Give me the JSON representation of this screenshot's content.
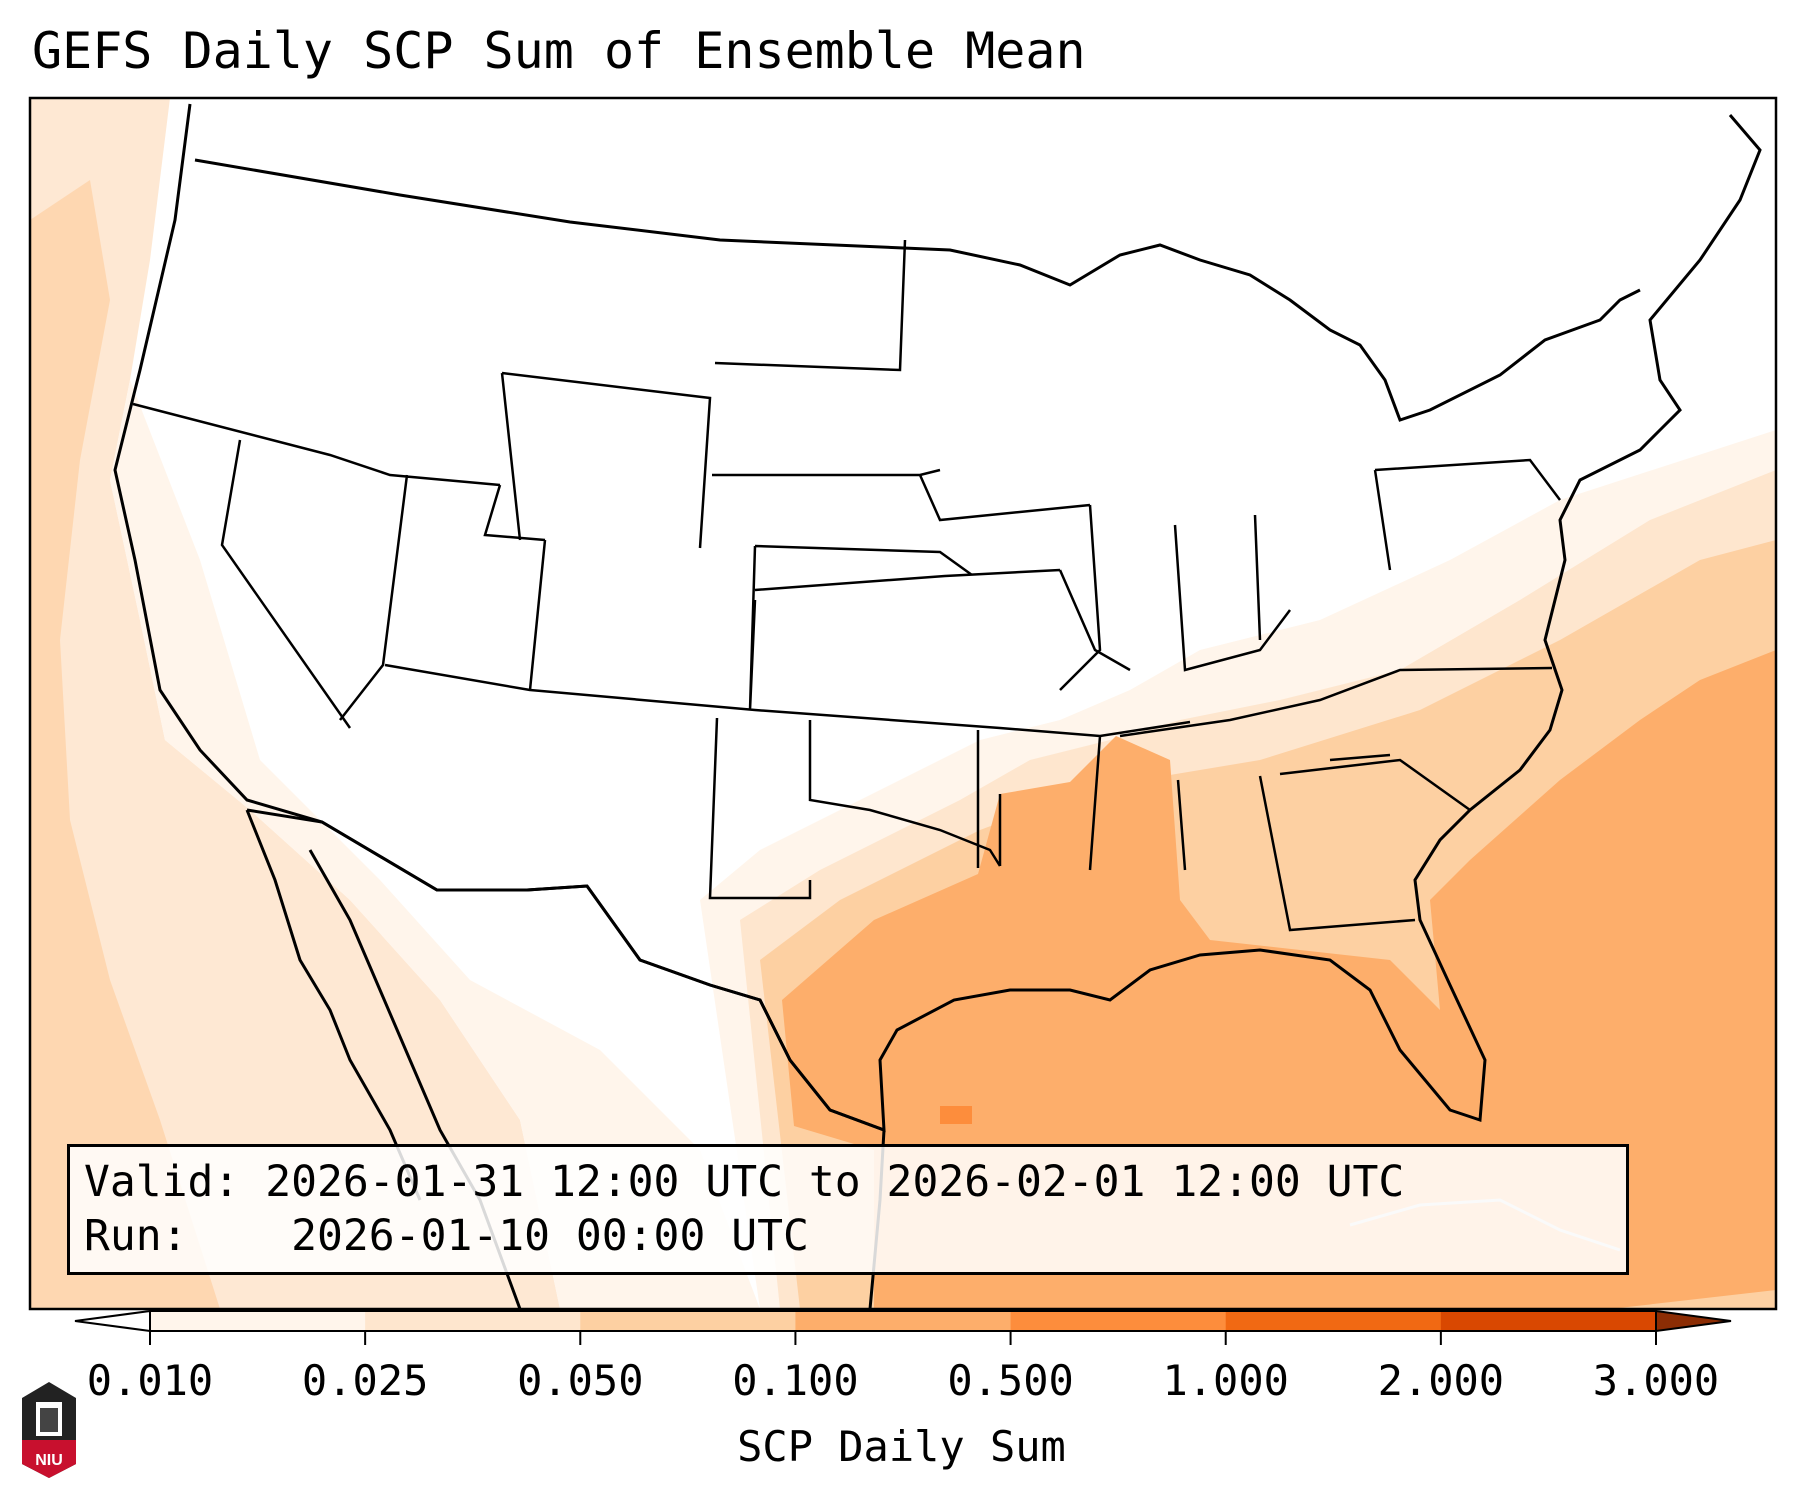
{
  "title": "GEFS Daily SCP Sum of Ensemble Mean",
  "legend": {
    "valid_label": "Valid:",
    "valid_text": "2026-01-31 12:00 UTC to 2026-02-01 12:00 UTC",
    "run_label": "Run:",
    "run_text": "2026-01-10 00:00 UTC"
  },
  "colorbar": {
    "label": "SCP Daily Sum",
    "ticks": [
      "0.010",
      "0.025",
      "0.050",
      "0.100",
      "0.500",
      "1.000",
      "2.000",
      "3.000"
    ],
    "colors": [
      "#fff5eb",
      "#fee6ce",
      "#fdd0a2",
      "#fdae6b",
      "#fd8d3c",
      "#f16913",
      "#d94801",
      "#8c2d04"
    ]
  },
  "logo": {
    "text": "NIU"
  }
}
